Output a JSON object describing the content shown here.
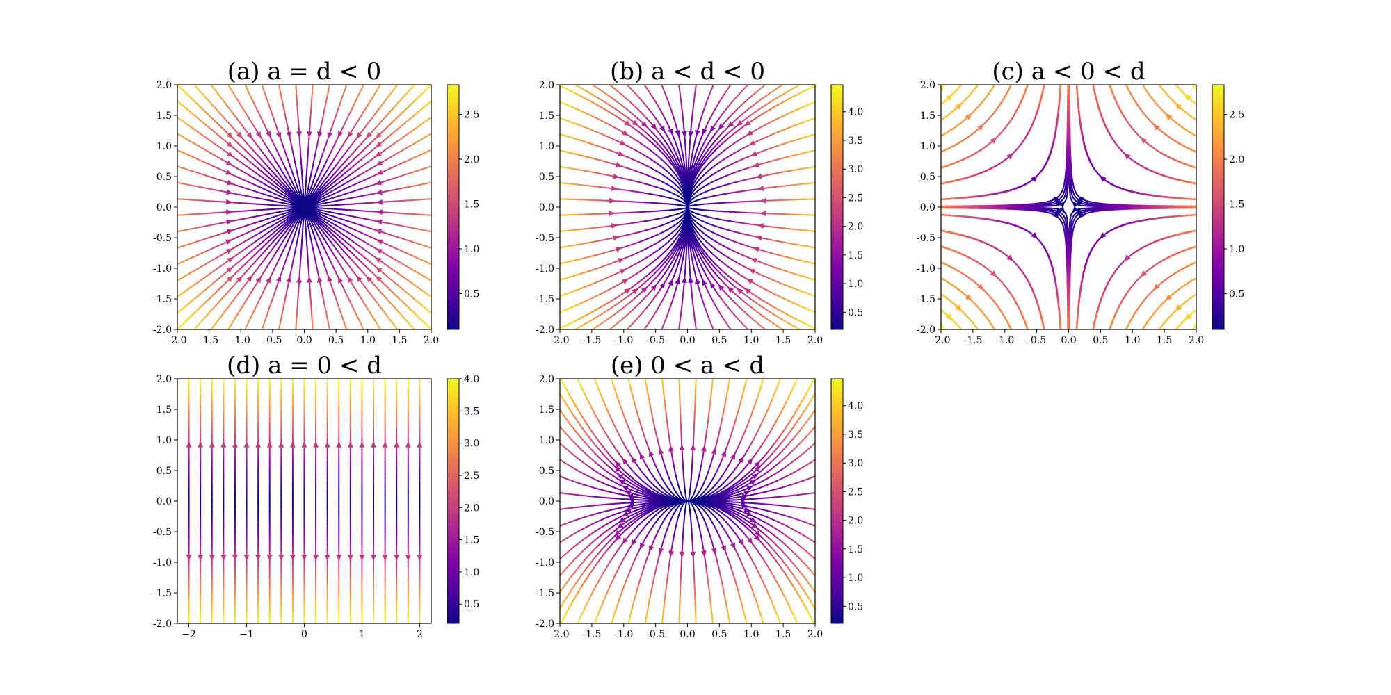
{
  "chart_data": [
    {
      "type": "streamplot",
      "title": "(a) a = d < 0",
      "system": {
        "dx": "-x",
        "dy": "-y"
      },
      "xlim": [
        -2,
        2
      ],
      "ylim": [
        -2,
        2
      ],
      "xticks": [
        "-2.0",
        "-1.5",
        "-1.0",
        "-0.5",
        "0.0",
        "0.5",
        "1.0",
        "1.5",
        "2.0"
      ],
      "yticks": [
        "-2.0",
        "-1.5",
        "-1.0",
        "-0.5",
        "0.0",
        "0.5",
        "1.0",
        "1.5",
        "2.0"
      ],
      "colorbar": {
        "colormap": "plasma",
        "min": 0.1,
        "max": 2.83,
        "ticks": [
          "0.5",
          "1.0",
          "1.5",
          "2.0",
          "2.5"
        ]
      }
    },
    {
      "type": "streamplot",
      "title": "(b) a < d < 0",
      "system": {
        "dx": "-2x",
        "dy": "-y"
      },
      "xlim": [
        -2,
        2
      ],
      "ylim": [
        -2,
        2
      ],
      "xticks": [
        "-2.0",
        "-1.5",
        "-1.0",
        "-0.5",
        "0.0",
        "0.5",
        "1.0",
        "1.5",
        "2.0"
      ],
      "yticks": [
        "-2.0",
        "-1.5",
        "-1.0",
        "-0.5",
        "0.0",
        "0.5",
        "1.0",
        "1.5",
        "2.0"
      ],
      "colorbar": {
        "colormap": "plasma",
        "min": 0.2,
        "max": 4.47,
        "ticks": [
          "0.5",
          "1.0",
          "1.5",
          "2.0",
          "2.5",
          "3.0",
          "3.5",
          "4.0"
        ]
      }
    },
    {
      "type": "streamplot",
      "title": "(c) a < 0 < d",
      "system": {
        "dx": "-x",
        "dy": "y"
      },
      "xlim": [
        -2,
        2
      ],
      "ylim": [
        -2,
        2
      ],
      "xticks": [
        "-2.0",
        "-1.5",
        "-1.0",
        "-0.5",
        "0.0",
        "0.5",
        "1.0",
        "1.5",
        "2.0"
      ],
      "yticks": [
        "-2.0",
        "-1.5",
        "-1.0",
        "-0.5",
        "0.0",
        "0.5",
        "1.0",
        "1.5",
        "2.0"
      ],
      "colorbar": {
        "colormap": "plasma",
        "min": 0.1,
        "max": 2.83,
        "ticks": [
          "0.5",
          "1.0",
          "1.5",
          "2.0",
          "2.5"
        ]
      }
    },
    {
      "type": "streamplot",
      "title": "(d) a = 0 < d",
      "system": {
        "dx": "0",
        "dy": "2y"
      },
      "xlim": [
        -2.2,
        2.2
      ],
      "ylim": [
        -2,
        2
      ],
      "xticks": [
        "−2",
        "−1",
        "0",
        "1",
        "2"
      ],
      "yticks": [
        "-2.0",
        "-1.5",
        "-1.0",
        "-0.5",
        "0.0",
        "0.5",
        "1.0",
        "1.5",
        "2.0"
      ],
      "colorbar": {
        "colormap": "plasma",
        "min": 0.2,
        "max": 4.0,
        "ticks": [
          "0.5",
          "1.0",
          "1.5",
          "2.0",
          "2.5",
          "3.0",
          "3.5",
          "4.0"
        ]
      }
    },
    {
      "type": "streamplot",
      "title": "(e) 0 < a < d",
      "system": {
        "dx": "x",
        "dy": "2y"
      },
      "xlim": [
        -2,
        2
      ],
      "ylim": [
        -2,
        2
      ],
      "xticks": [
        "-2.0",
        "-1.5",
        "-1.0",
        "-0.5",
        "0.0",
        "0.5",
        "1.0",
        "1.5",
        "2.0"
      ],
      "yticks": [
        "-2.0",
        "-1.5",
        "-1.0",
        "-0.5",
        "0.0",
        "0.5",
        "1.0",
        "1.5",
        "2.0"
      ],
      "colorbar": {
        "colormap": "plasma",
        "min": 0.2,
        "max": 4.47,
        "ticks": [
          "0.5",
          "1.0",
          "1.5",
          "2.0",
          "2.5",
          "3.0",
          "3.5",
          "4.0"
        ]
      }
    }
  ]
}
